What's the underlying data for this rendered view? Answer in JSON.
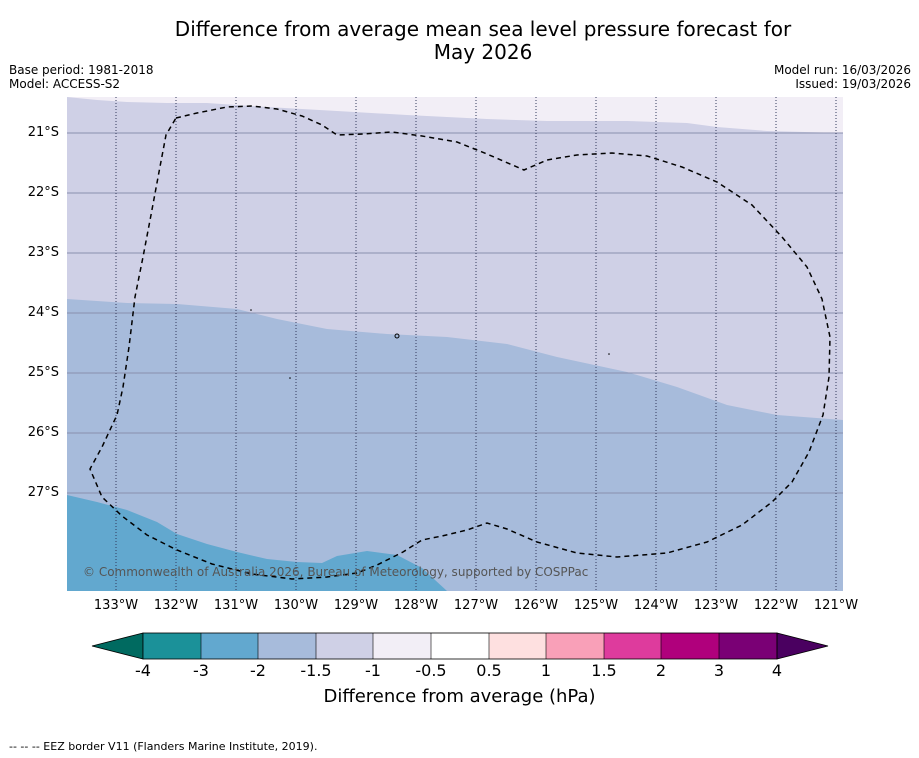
{
  "title_line1": "Difference from average mean sea level pressure forecast for",
  "title_line2": "May 2026",
  "base_period": "Base period: 1981-2018",
  "model": "Model: ACCESS-S2",
  "model_run": "Model run: 16/03/2026",
  "issued": "Issued: 19/03/2026",
  "lat_labels": [
    "21°S",
    "22°S",
    "23°S",
    "24°S",
    "25°S",
    "26°S",
    "27°S"
  ],
  "lon_labels": [
    "133°W",
    "132°W",
    "131°W",
    "130°W",
    "129°W",
    "128°W",
    "127°W",
    "126°W",
    "125°W",
    "124°W",
    "123°W",
    "122°W",
    "121°W"
  ],
  "copyright": "© Commonwealth of Australia 2026, Bureau of Meteorology, supported by COSPPac",
  "colorbar": {
    "ticks": [
      "-4",
      "-3",
      "-2",
      "-1.5",
      "-1",
      "-0.5",
      "0.5",
      "1",
      "1.5",
      "2",
      "3",
      "4"
    ],
    "title": "Difference from average (hPa)",
    "colors": {
      "under": "#006a60",
      "b1": "#1b9199",
      "b2": "#62a8cf",
      "b3": "#a7bbdb",
      "b4": "#cfd0e6",
      "b5": "#f2eef6",
      "b6": "#ffffff",
      "b7": "#fee0e0",
      "b8": "#f9a0b8",
      "b9": "#de3b9d",
      "b10": "#b0007c",
      "b11": "#7a0075",
      "over": "#4a0060"
    }
  },
  "footer": "-- -- -- EEZ border V11 (Flanders Marine Institute, 2019)."
}
